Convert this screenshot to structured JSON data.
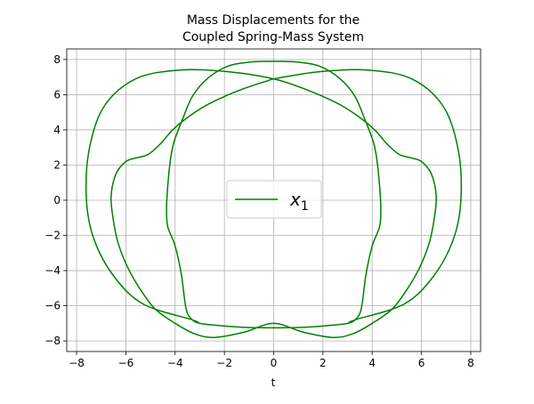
{
  "chart_data": {
    "type": "line",
    "title": "Mass Displacements for the",
    "title_line2": "Coupled Spring-Mass System",
    "xlabel": "t",
    "ylabel": "",
    "xlim": [
      -8.4,
      8.4
    ],
    "ylim": [
      -8.6,
      8.6
    ],
    "xticks": [
      -8,
      -6,
      -4,
      -2,
      0,
      2,
      4,
      6,
      8
    ],
    "yticks": [
      -8,
      -6,
      -4,
      -2,
      0,
      2,
      4,
      6,
      8
    ],
    "grid": true,
    "legend_position": "center",
    "series": [
      {
        "name": "x",
        "name_subscript": "1",
        "color": "#008000",
        "x": [
          0,
          -1.3,
          -2.6,
          -3.4,
          -4.1,
          -4.6,
          -5.1,
          -5.6,
          -6.0,
          -6.4,
          -6.6,
          -6.5,
          -6.3,
          -5.9,
          -5.4,
          -4.8,
          -4.0,
          -3.2,
          -2.4,
          -1.2,
          0,
          1.2,
          2.4,
          3.2,
          4.0,
          4.8,
          5.4,
          5.9,
          6.3,
          6.5,
          6.6,
          6.4,
          6.0,
          5.6,
          5.1,
          4.6,
          4.1,
          3.4,
          2.6,
          1.3,
          0,
          -1.8,
          -3.8,
          -5.6,
          -6.9,
          -7.5,
          -7.6,
          -7.3,
          -6.5,
          -5.3,
          -3.3,
          -3.0,
          -2.4,
          -1.5,
          -0.5,
          0.5,
          1.5,
          2.4,
          3.0,
          3.3,
          3.55,
          3.75,
          4.0,
          4.3,
          4.35,
          4.3,
          4.2,
          4.05,
          3.7,
          3.3,
          2.7,
          1.9,
          1.0,
          0,
          -1.0,
          -1.9,
          -2.7,
          -3.3,
          -3.7,
          -4.05,
          -4.2,
          -4.3,
          -4.35,
          -4.3,
          -4.0,
          -3.75,
          -3.55,
          -3.3,
          -3.0,
          -2.4,
          -1.5,
          -0.5,
          0.5,
          1.5,
          2.4,
          3.0,
          3.3,
          5.3,
          6.5,
          7.3,
          7.6,
          7.5,
          6.9,
          5.6,
          3.8,
          1.8,
          0
        ],
        "y": [
          6.9,
          6.3,
          5.5,
          4.8,
          4.0,
          3.2,
          2.6,
          2.4,
          2.2,
          1.5,
          0.2,
          -1.2,
          -2.5,
          -3.9,
          -5.1,
          -6.2,
          -7.0,
          -7.6,
          -7.8,
          -7.5,
          -7.0,
          -7.5,
          -7.8,
          -7.6,
          -7.0,
          -6.2,
          -5.1,
          -3.9,
          -2.5,
          -1.2,
          0.2,
          1.5,
          2.2,
          2.4,
          2.6,
          3.2,
          4.0,
          4.8,
          5.5,
          6.3,
          6.9,
          7.3,
          7.4,
          6.9,
          5.3,
          2.8,
          0.0,
          -2.2,
          -4.3,
          -5.9,
          -6.8,
          -7.0,
          -7.1,
          -7.2,
          -7.25,
          -7.25,
          -7.2,
          -7.1,
          -7.0,
          -6.8,
          -6.2,
          -4.2,
          -2.6,
          -1.5,
          -0.5,
          0.8,
          2.2,
          3.3,
          4.6,
          5.9,
          6.9,
          7.6,
          7.85,
          7.9,
          7.85,
          7.6,
          6.9,
          5.9,
          4.6,
          3.3,
          2.2,
          0.8,
          -0.5,
          -1.5,
          -2.6,
          -4.2,
          -6.2,
          -6.8,
          -7.0,
          -7.1,
          -7.2,
          -7.25,
          -7.25,
          -7.2,
          -7.1,
          -7.0,
          -6.8,
          -5.9,
          -4.3,
          -2.2,
          0.0,
          2.8,
          5.3,
          6.9,
          7.4,
          7.3,
          6.9
        ]
      }
    ]
  }
}
